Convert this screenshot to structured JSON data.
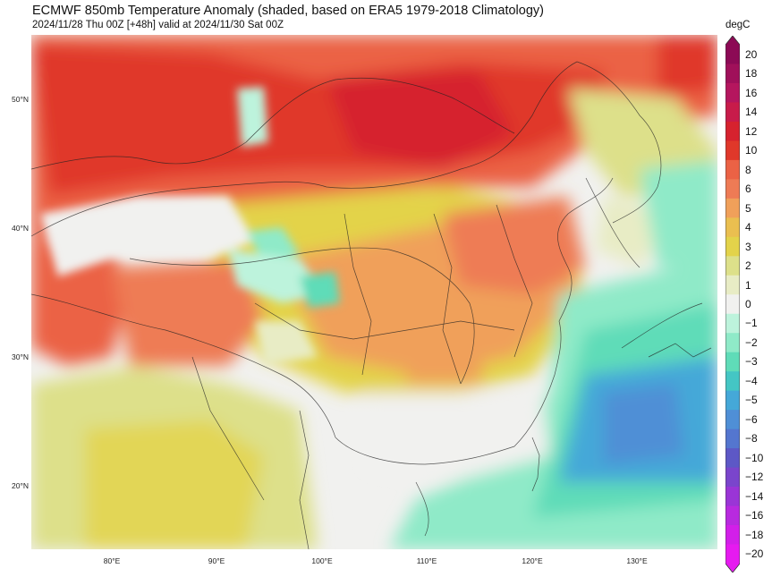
{
  "header": {
    "title": "ECMWF 850mb Temperature Anomaly (shaded, based on ERA5 1979-2018 Climatology)",
    "subtitle": "2024/11/28 Thu 00Z [+48h] valid at 2024/11/30 Sat 00Z"
  },
  "map": {
    "lat_labels": [
      "50°N",
      "40°N",
      "30°N",
      "20°N"
    ],
    "lon_labels": [
      "80°E",
      "90°E",
      "100°E",
      "110°E",
      "120°E",
      "130°E"
    ]
  },
  "colorbar": {
    "unit": "degC",
    "labels": [
      "20",
      "18",
      "16",
      "14",
      "12",
      "10",
      "8",
      "6",
      "5",
      "4",
      "3",
      "2",
      "1",
      "0",
      "−1",
      "−2",
      "−3",
      "−4",
      "−5",
      "−6",
      "−8",
      "−10",
      "−12",
      "−14",
      "−16",
      "−18",
      "−20"
    ],
    "colors": [
      "#8c0a55",
      "#a0105a",
      "#b5165e",
      "#c81b4a",
      "#d6222e",
      "#e0382a",
      "#eb6245",
      "#ee7b55",
      "#f0a05a",
      "#eabf50",
      "#e3d34a",
      "#dde08a",
      "#e8ecc5",
      "#f1f1ef",
      "#bdf3dc",
      "#8feac8",
      "#5fdcb8",
      "#44c6c4",
      "#45a8d8",
      "#4f8fd6",
      "#5476cf",
      "#5d58c6",
      "#7a45cc",
      "#9a35d6",
      "#b82adf",
      "#d21fe9",
      "#e61af0"
    ]
  }
}
